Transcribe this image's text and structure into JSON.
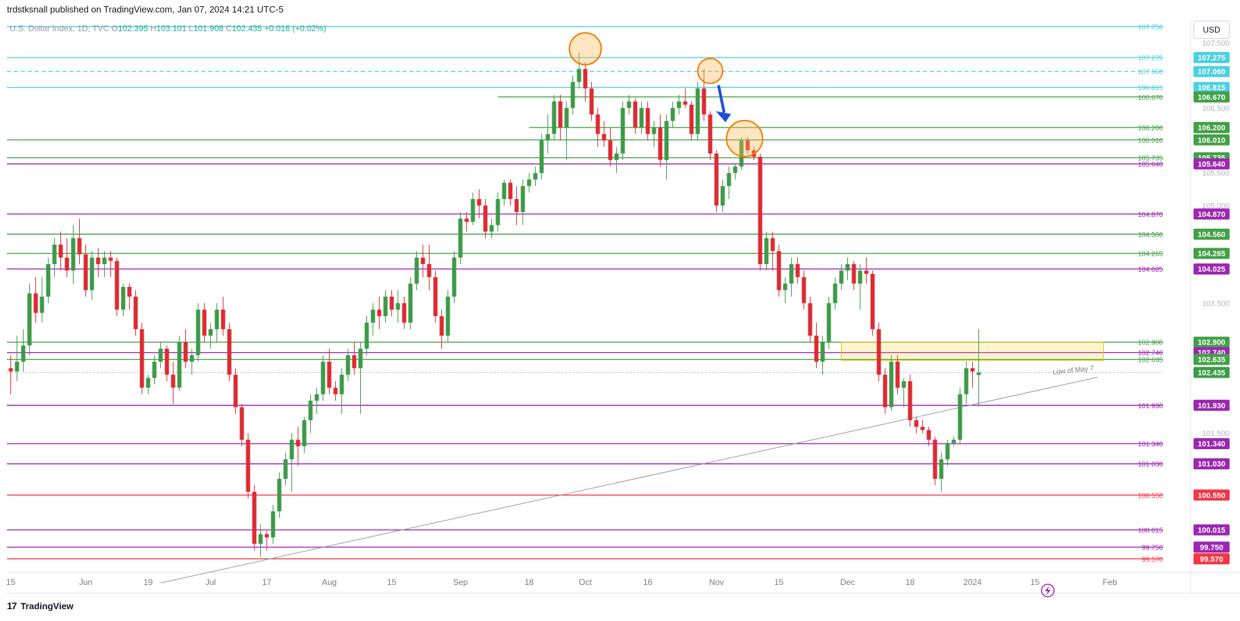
{
  "header": {
    "published_text": "trdstksnall published on TradingView.com, Jan 07, 2024 14:21 UTC-5"
  },
  "legend": {
    "symbol": "U.S. Dollar Index, 1D, TVC",
    "open_label": "O",
    "open": "102.395",
    "high_label": "H",
    "high": "103.101",
    "low_label": "L",
    "low": "101.908",
    "close_label": "C",
    "close": "102.435",
    "change": "+0.016 (+0.02%)"
  },
  "currency": "USD",
  "brand": {
    "logo": "17",
    "name": "TradingView"
  },
  "colors": {
    "up": "#3d9a48",
    "down": "#dd2b33",
    "cyan": "#4dd0e1",
    "green": "#43a047",
    "purple": "#9c27b0",
    "red": "#f23645",
    "gray": "#9598a1"
  },
  "chart_data": {
    "type": "candlestick",
    "y_range": [
      99.36,
      107.84
    ],
    "y_axis_ticks": [
      "107.500",
      "106.500",
      "105.500",
      "105.000",
      "103.500",
      "101.500"
    ],
    "x_axis_ticks": [
      {
        "label": "15",
        "bar": 0
      },
      {
        "label": "Jun",
        "bar": 12
      },
      {
        "label": "19",
        "bar": 22
      },
      {
        "label": "Jul",
        "bar": 32
      },
      {
        "label": "17",
        "bar": 41
      },
      {
        "label": "Aug",
        "bar": 51
      },
      {
        "label": "15",
        "bar": 61
      },
      {
        "label": "Sep",
        "bar": 72
      },
      {
        "label": "18",
        "bar": 83
      },
      {
        "label": "Oct",
        "bar": 92
      },
      {
        "label": "16",
        "bar": 102
      },
      {
        "label": "Nov",
        "bar": 113
      },
      {
        "label": "15",
        "bar": 123
      },
      {
        "label": "Dec",
        "bar": 134
      },
      {
        "label": "18",
        "bar": 144
      },
      {
        "label": "2024",
        "bar": 154
      },
      {
        "label": "15",
        "bar": 164
      },
      {
        "label": "Feb",
        "bar": 176
      }
    ],
    "levels": [
      {
        "value": 107.75,
        "label": "107.750",
        "color": "#4dd0e1",
        "style": "solid",
        "badge": false
      },
      {
        "value": 107.275,
        "label": "107.275",
        "color": "#4dd0e1",
        "style": "solid",
        "badge": true
      },
      {
        "value": 107.06,
        "label": "107.060",
        "color": "#4dd0e1",
        "style": "dashed",
        "badge": true
      },
      {
        "value": 106.815,
        "label": "106.815",
        "color": "#4dd0e1",
        "style": "solid",
        "badge": true
      },
      {
        "value": 106.67,
        "label": "106.670",
        "color": "#43a047",
        "style": "solid",
        "badge": true,
        "start_bar": 78
      },
      {
        "value": 106.2,
        "label": "106.200",
        "color": "#43a047",
        "style": "solid",
        "badge": true,
        "start_bar": 83
      },
      {
        "value": 106.01,
        "label": "106.010",
        "color": "#43a047",
        "style": "solid",
        "badge": true
      },
      {
        "value": 105.735,
        "label": "105.735",
        "color": "#43a047",
        "style": "solid",
        "badge": true
      },
      {
        "value": 105.64,
        "label": "105.640",
        "color": "#9c27b0",
        "style": "solid",
        "badge": true
      },
      {
        "value": 104.87,
        "label": "104.870",
        "color": "#9c27b0",
        "style": "solid",
        "badge": true
      },
      {
        "value": 104.56,
        "label": "104.560",
        "color": "#43a047",
        "style": "solid",
        "badge": true
      },
      {
        "value": 104.265,
        "label": "104.265",
        "color": "#43a047",
        "style": "solid",
        "badge": true
      },
      {
        "value": 104.025,
        "label": "104.025",
        "color": "#9c27b0",
        "style": "solid",
        "badge": true
      },
      {
        "value": 102.9,
        "label": "102.900",
        "color": "#43a047",
        "style": "solid",
        "badge": true
      },
      {
        "value": 102.74,
        "label": "102.740",
        "color": "#9c27b0",
        "style": "solid",
        "badge": true
      },
      {
        "value": 102.635,
        "label": "102.635",
        "color": "#43a047",
        "style": "solid",
        "badge": true
      },
      {
        "value": 101.93,
        "label": "101.930",
        "color": "#9c27b0",
        "style": "solid",
        "badge": true
      },
      {
        "value": 101.34,
        "label": "101.340",
        "color": "#9c27b0",
        "style": "solid",
        "badge": true
      },
      {
        "value": 101.03,
        "label": "101.030",
        "color": "#9c27b0",
        "style": "solid",
        "badge": true
      },
      {
        "value": 100.55,
        "label": "100.550",
        "color": "#f23645",
        "style": "solid",
        "badge": true
      },
      {
        "value": 100.015,
        "label": "100.015",
        "color": "#9c27b0",
        "style": "solid",
        "badge": true
      },
      {
        "value": 99.75,
        "label": "99.750",
        "color": "#9c27b0",
        "style": "solid",
        "badge": true
      },
      {
        "value": 99.57,
        "label": "99.570",
        "color": "#f23645",
        "style": "solid",
        "badge": true
      }
    ],
    "last_price": {
      "value": 102.435,
      "label": "102.435"
    },
    "zone": {
      "from_bar": 133,
      "to_bar": 175,
      "top": 102.9,
      "bottom": 102.62
    },
    "trendline": {
      "x1_bar": 24,
      "y1": 99.2,
      "x2_bar": 174,
      "y2": 102.36,
      "label": "Low of May 7"
    },
    "annotations": [
      {
        "type": "circle",
        "bar": 92,
        "value": 107.41
      },
      {
        "type": "circle",
        "bar": 112,
        "value": 107.07
      },
      {
        "type": "circle",
        "bar": 117.5,
        "value": 106.03
      },
      {
        "type": "arrow",
        "bar": 114,
        "value_from": 106.85,
        "value_to": 106.28
      }
    ],
    "candles": [
      [
        102.5,
        102.7,
        102.1,
        102.45
      ],
      [
        102.45,
        103.0,
        102.3,
        102.6
      ],
      [
        102.6,
        103.1,
        102.45,
        102.85
      ],
      [
        102.85,
        103.8,
        102.7,
        103.65
      ],
      [
        103.65,
        103.9,
        103.2,
        103.35
      ],
      [
        103.35,
        103.9,
        103.2,
        103.6
      ],
      [
        103.6,
        104.2,
        103.5,
        104.1
      ],
      [
        104.1,
        104.5,
        103.9,
        104.4
      ],
      [
        104.4,
        104.6,
        104.0,
        104.2
      ],
      [
        104.2,
        104.5,
        103.9,
        104.0
      ],
      [
        104.0,
        104.7,
        103.8,
        104.5
      ],
      [
        104.5,
        104.8,
        104.1,
        104.25
      ],
      [
        104.25,
        104.4,
        103.6,
        103.7
      ],
      [
        103.7,
        104.3,
        103.55,
        104.2
      ],
      [
        104.2,
        104.35,
        103.9,
        104.1
      ],
      [
        104.1,
        104.3,
        103.9,
        104.2
      ],
      [
        104.2,
        104.3,
        103.9,
        104.15
      ],
      [
        104.15,
        104.2,
        103.3,
        103.4
      ],
      [
        103.4,
        103.8,
        103.3,
        103.75
      ],
      [
        103.75,
        103.8,
        103.4,
        103.6
      ],
      [
        103.6,
        103.7,
        103.0,
        103.1
      ],
      [
        103.1,
        103.2,
        102.1,
        102.2
      ],
      [
        102.2,
        102.4,
        102.1,
        102.35
      ],
      [
        102.35,
        102.7,
        102.25,
        102.6
      ],
      [
        102.6,
        102.9,
        102.5,
        102.8
      ],
      [
        102.8,
        102.85,
        102.3,
        102.4
      ],
      [
        102.4,
        102.6,
        101.95,
        102.2
      ],
      [
        102.2,
        103.0,
        102.15,
        102.9
      ],
      [
        102.9,
        103.1,
        102.5,
        102.6
      ],
      [
        102.6,
        102.8,
        102.4,
        102.7
      ],
      [
        102.7,
        103.5,
        102.6,
        103.4
      ],
      [
        103.4,
        103.5,
        102.9,
        103.0
      ],
      [
        103.0,
        103.2,
        102.8,
        103.1
      ],
      [
        103.1,
        103.5,
        102.9,
        103.4
      ],
      [
        103.4,
        103.6,
        103.0,
        103.1
      ],
      [
        103.1,
        103.2,
        102.3,
        102.4
      ],
      [
        102.4,
        102.5,
        101.8,
        101.9
      ],
      [
        101.9,
        101.95,
        101.3,
        101.4
      ],
      [
        101.4,
        101.5,
        100.5,
        100.6
      ],
      [
        100.6,
        100.7,
        99.7,
        99.8
      ],
      [
        99.8,
        100.1,
        99.6,
        99.95
      ],
      [
        99.95,
        100.0,
        99.7,
        99.9
      ],
      [
        99.9,
        100.4,
        99.8,
        100.3
      ],
      [
        100.3,
        100.9,
        100.2,
        100.8
      ],
      [
        100.8,
        101.2,
        100.7,
        101.1
      ],
      [
        101.1,
        101.5,
        100.6,
        101.4
      ],
      [
        101.4,
        101.6,
        101.0,
        101.3
      ],
      [
        101.3,
        101.75,
        101.2,
        101.7
      ],
      [
        101.7,
        102.1,
        101.5,
        102.0
      ],
      [
        102.0,
        102.2,
        101.8,
        102.1
      ],
      [
        102.1,
        102.7,
        102.0,
        102.6
      ],
      [
        102.6,
        102.8,
        102.1,
        102.2
      ],
      [
        102.2,
        102.3,
        102.0,
        102.1
      ],
      [
        102.1,
        102.5,
        101.8,
        102.4
      ],
      [
        102.4,
        102.8,
        102.3,
        102.7
      ],
      [
        102.7,
        102.9,
        102.4,
        102.5
      ],
      [
        102.5,
        102.9,
        101.8,
        102.8
      ],
      [
        102.8,
        103.3,
        102.7,
        103.2
      ],
      [
        103.2,
        103.5,
        103.0,
        103.4
      ],
      [
        103.4,
        103.6,
        103.1,
        103.3
      ],
      [
        103.3,
        103.7,
        103.2,
        103.6
      ],
      [
        103.6,
        103.7,
        103.3,
        103.4
      ],
      [
        103.4,
        103.7,
        103.2,
        103.5
      ],
      [
        103.5,
        103.6,
        103.1,
        103.2
      ],
      [
        103.2,
        103.9,
        103.1,
        103.8
      ],
      [
        103.8,
        104.3,
        103.7,
        104.2
      ],
      [
        104.2,
        104.4,
        103.9,
        104.1
      ],
      [
        104.1,
        104.4,
        103.7,
        103.9
      ],
      [
        103.9,
        104.0,
        103.2,
        103.3
      ],
      [
        103.3,
        103.4,
        102.8,
        103.0
      ],
      [
        103.0,
        103.7,
        102.9,
        103.6
      ],
      [
        103.6,
        104.3,
        103.5,
        104.2
      ],
      [
        104.2,
        104.9,
        104.1,
        104.8
      ],
      [
        104.8,
        104.9,
        104.6,
        104.75
      ],
      [
        104.75,
        105.2,
        104.7,
        105.1
      ],
      [
        105.1,
        105.25,
        104.8,
        105.0
      ],
      [
        105.0,
        105.1,
        104.5,
        104.6
      ],
      [
        104.6,
        104.8,
        104.5,
        104.7
      ],
      [
        104.7,
        105.2,
        104.6,
        105.1
      ],
      [
        105.1,
        105.4,
        105.0,
        105.35
      ],
      [
        105.35,
        105.4,
        105.0,
        105.1
      ],
      [
        105.1,
        105.3,
        104.7,
        104.9
      ],
      [
        104.9,
        105.4,
        104.7,
        105.3
      ],
      [
        105.3,
        105.5,
        105.2,
        105.4
      ],
      [
        105.4,
        105.6,
        105.3,
        105.5
      ],
      [
        105.5,
        106.1,
        105.4,
        106.0
      ],
      [
        106.0,
        106.4,
        105.8,
        106.1
      ],
      [
        106.1,
        106.7,
        106.0,
        106.6
      ],
      [
        106.6,
        106.7,
        106.0,
        106.2
      ],
      [
        106.2,
        106.6,
        105.7,
        106.5
      ],
      [
        106.5,
        107.0,
        106.4,
        106.9
      ],
      [
        106.9,
        107.35,
        106.8,
        107.1
      ],
      [
        107.1,
        107.2,
        106.6,
        106.8
      ],
      [
        106.8,
        106.9,
        106.3,
        106.4
      ],
      [
        106.4,
        106.5,
        105.9,
        106.1
      ],
      [
        106.1,
        106.3,
        105.9,
        106.0
      ],
      [
        106.0,
        106.2,
        105.6,
        105.7
      ],
      [
        105.7,
        105.9,
        105.5,
        105.8
      ],
      [
        105.8,
        106.6,
        105.7,
        106.5
      ],
      [
        106.5,
        106.7,
        106.4,
        106.6
      ],
      [
        106.6,
        106.65,
        106.1,
        106.2
      ],
      [
        106.2,
        106.6,
        106.1,
        106.5
      ],
      [
        106.5,
        106.6,
        106.0,
        106.1
      ],
      [
        106.1,
        106.3,
        105.9,
        106.2
      ],
      [
        106.2,
        106.4,
        105.6,
        105.7
      ],
      [
        105.7,
        106.4,
        105.4,
        106.3
      ],
      [
        106.3,
        106.6,
        106.2,
        106.5
      ],
      [
        106.5,
        106.7,
        106.4,
        106.6
      ],
      [
        106.6,
        106.8,
        106.5,
        106.55
      ],
      [
        106.55,
        106.6,
        106.0,
        106.1
      ],
      [
        106.1,
        106.9,
        106.0,
        106.8
      ],
      [
        106.8,
        107.1,
        106.3,
        106.4
      ],
      [
        106.4,
        106.45,
        105.7,
        105.8
      ],
      [
        105.8,
        105.85,
        104.9,
        105.0
      ],
      [
        105.0,
        105.4,
        104.9,
        105.3
      ],
      [
        105.3,
        105.6,
        105.1,
        105.5
      ],
      [
        105.5,
        105.65,
        105.4,
        105.6
      ],
      [
        105.6,
        106.05,
        105.55,
        106.0
      ],
      [
        106.0,
        106.05,
        105.8,
        105.85
      ],
      [
        105.85,
        105.9,
        105.7,
        105.75
      ],
      [
        105.75,
        105.8,
        104.0,
        104.1
      ],
      [
        104.1,
        104.6,
        104.0,
        104.5
      ],
      [
        104.5,
        104.6,
        104.0,
        104.3
      ],
      [
        104.3,
        104.4,
        103.6,
        103.7
      ],
      [
        103.7,
        103.9,
        103.5,
        103.8
      ],
      [
        103.8,
        104.2,
        103.6,
        104.1
      ],
      [
        104.1,
        104.2,
        103.8,
        103.9
      ],
      [
        103.9,
        104.0,
        103.4,
        103.5
      ],
      [
        103.5,
        103.6,
        102.9,
        103.0
      ],
      [
        103.0,
        103.2,
        102.5,
        102.6
      ],
      [
        102.6,
        103.0,
        102.4,
        102.9
      ],
      [
        102.9,
        103.6,
        102.8,
        103.5
      ],
      [
        103.5,
        103.9,
        103.4,
        103.8
      ],
      [
        103.8,
        104.1,
        103.7,
        104.0
      ],
      [
        104.0,
        104.2,
        103.85,
        104.1
      ],
      [
        104.1,
        104.15,
        103.7,
        103.8
      ],
      [
        103.8,
        104.1,
        103.4,
        104.0
      ],
      [
        104.0,
        104.2,
        103.8,
        103.95
      ],
      [
        103.95,
        104.0,
        103.0,
        103.1
      ],
      [
        103.1,
        103.2,
        102.3,
        102.4
      ],
      [
        102.4,
        102.5,
        101.8,
        101.9
      ],
      [
        101.9,
        102.7,
        101.85,
        102.6
      ],
      [
        102.6,
        102.7,
        102.1,
        102.2
      ],
      [
        102.2,
        102.35,
        101.9,
        102.3
      ],
      [
        102.3,
        102.4,
        101.6,
        101.7
      ],
      [
        101.7,
        101.75,
        101.5,
        101.6
      ],
      [
        101.6,
        101.7,
        101.5,
        101.55
      ],
      [
        101.55,
        101.6,
        101.3,
        101.4
      ],
      [
        101.4,
        101.45,
        100.7,
        100.8
      ],
      [
        100.8,
        101.2,
        100.6,
        101.1
      ],
      [
        101.1,
        101.4,
        101.0,
        101.35
      ],
      [
        101.35,
        101.45,
        101.3,
        101.4
      ],
      [
        101.4,
        102.2,
        101.35,
        102.1
      ],
      [
        102.1,
        102.6,
        101.95,
        102.5
      ],
      [
        102.5,
        102.6,
        102.2,
        102.45
      ],
      [
        102.395,
        103.101,
        101.908,
        102.435
      ]
    ]
  }
}
